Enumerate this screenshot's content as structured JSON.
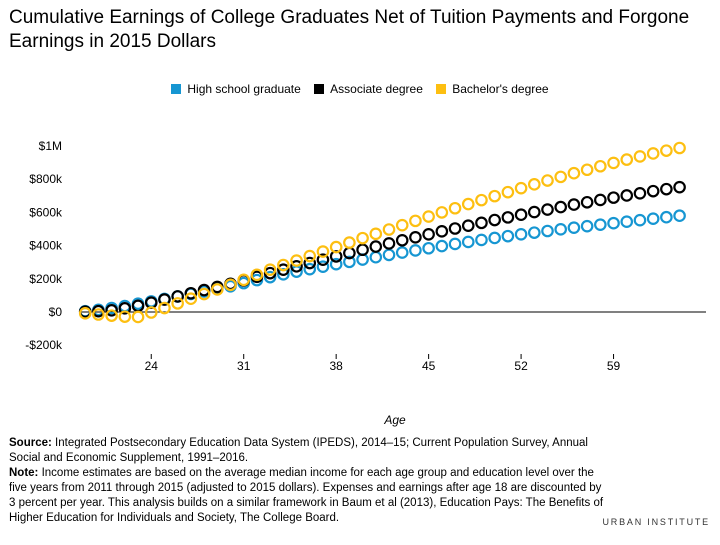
{
  "title": "Cumulative Earnings of College Graduates Net of Tuition Payments and Forgone Earnings in 2015 Dollars",
  "legend": [
    {
      "label": "High school graduate",
      "color": "#1696d2"
    },
    {
      "label": "Associate degree",
      "color": "#000000"
    },
    {
      "label": "Bachelor's degree",
      "color": "#fdbf11"
    }
  ],
  "xlabel": "Age",
  "footnote": {
    "source_label": "Source:",
    "source_text": "Integrated Postsecondary Education Data System (IPEDS), 2014–15; Current Population Survey, Annual Social and Economic Supplement, 1991–2016.",
    "note_label": "Note:",
    "note_text": "Income estimates are based on the average median income for each age group and education level over the five years from 2011 through 2015 (adjusted to 2015 dollars). Expenses and earnings after age 18 are discounted by 3 percent per year. This analysis builds on a similar framework in Baum et al (2013), Education Pays: The Benefits of Higher Education for Individuals and Society, The College Board."
  },
  "brand": "URBAN INSTITUTE",
  "chart_data": {
    "type": "scatter",
    "title": "Cumulative Earnings of College Graduates Net of Tuition Payments and Forgone Earnings in 2015 Dollars",
    "xlabel": "Age",
    "ylabel": "",
    "x_ticks": [
      24,
      31,
      38,
      45,
      52,
      59
    ],
    "y_ticks": [
      -200000,
      0,
      200000,
      400000,
      600000,
      800000,
      1000000
    ],
    "y_tick_labels": [
      "-$200k",
      "$0",
      "$200k",
      "$400k",
      "$600k",
      "$800k",
      "$1M"
    ],
    "xlim": [
      18,
      66
    ],
    "ylim": [
      -220000,
      1000000
    ],
    "grid": false,
    "legend_position": "top",
    "series": [
      {
        "name": "High school graduate",
        "color": "#1696d2",
        "x": [
          19,
          20,
          21,
          22,
          23,
          24,
          25,
          26,
          27,
          28,
          29,
          30,
          31,
          32,
          33,
          34,
          35,
          36,
          37,
          38,
          39,
          40,
          41,
          42,
          43,
          44,
          45,
          46,
          47,
          48,
          49,
          50,
          51,
          52,
          53,
          54,
          55,
          56,
          57,
          58,
          59,
          60,
          61,
          62,
          63,
          64
        ],
        "values": [
          5000,
          13000,
          24000,
          36000,
          50000,
          64000,
          79000,
          94000,
          109000,
          124000,
          139000,
          155000,
          174000,
          192000,
          210000,
          227000,
          243000,
          258000,
          273000,
          288000,
          302000,
          316000,
          330000,
          344000,
          358000,
          371000,
          384000,
          397000,
          410000,
          422000,
          434000,
          446000,
          457000,
          468000,
          478000,
          488000,
          498000,
          508000,
          517000,
          526000,
          535000,
          544000,
          553000,
          562000,
          571000,
          580000
        ]
      },
      {
        "name": "Associate degree",
        "color": "#000000",
        "x": [
          19,
          20,
          21,
          22,
          23,
          24,
          25,
          26,
          27,
          28,
          29,
          30,
          31,
          32,
          33,
          34,
          35,
          36,
          37,
          38,
          39,
          40,
          41,
          42,
          43,
          44,
          45,
          46,
          47,
          48,
          49,
          50,
          51,
          52,
          53,
          54,
          55,
          56,
          57,
          58,
          59,
          60,
          61,
          62,
          63,
          64
        ],
        "values": [
          2000,
          5000,
          10000,
          22000,
          37000,
          56000,
          75000,
          94000,
          113000,
          132000,
          151000,
          170000,
          190000,
          212000,
          234000,
          255000,
          275000,
          295000,
          315000,
          335000,
          355000,
          375000,
          394000,
          413000,
          432000,
          450000,
          468000,
          486000,
          503000,
          520000,
          537000,
          554000,
          570000,
          586000,
          602000,
          617000,
          632000,
          647000,
          661000,
          675000,
          689000,
          702000,
          715000,
          728000,
          740000,
          752000
        ]
      },
      {
        "name": "Bachelor's degree",
        "color": "#fdbf11",
        "x": [
          19,
          20,
          21,
          22,
          23,
          24,
          25,
          26,
          27,
          28,
          29,
          30,
          31,
          32,
          33,
          34,
          35,
          36,
          37,
          38,
          39,
          40,
          41,
          42,
          43,
          44,
          45,
          46,
          47,
          48,
          49,
          50,
          51,
          52,
          53,
          54,
          55,
          56,
          57,
          58,
          59,
          60,
          61,
          62,
          63,
          64
        ],
        "values": [
          -8000,
          -15000,
          -22000,
          -28000,
          -30000,
          -3000,
          24000,
          52000,
          80000,
          108000,
          136000,
          164000,
          194000,
          224000,
          255000,
          283000,
          310000,
          337000,
          364000,
          391000,
          418000,
          445000,
          471000,
          497000,
          523000,
          549000,
          575000,
          600000,
          625000,
          650000,
          674000,
          698000,
          722000,
          746000,
          769000,
          792000,
          814000,
          836000,
          857000,
          878000,
          898000,
          918000,
          937000,
          955000,
          972000,
          988000
        ]
      }
    ]
  }
}
